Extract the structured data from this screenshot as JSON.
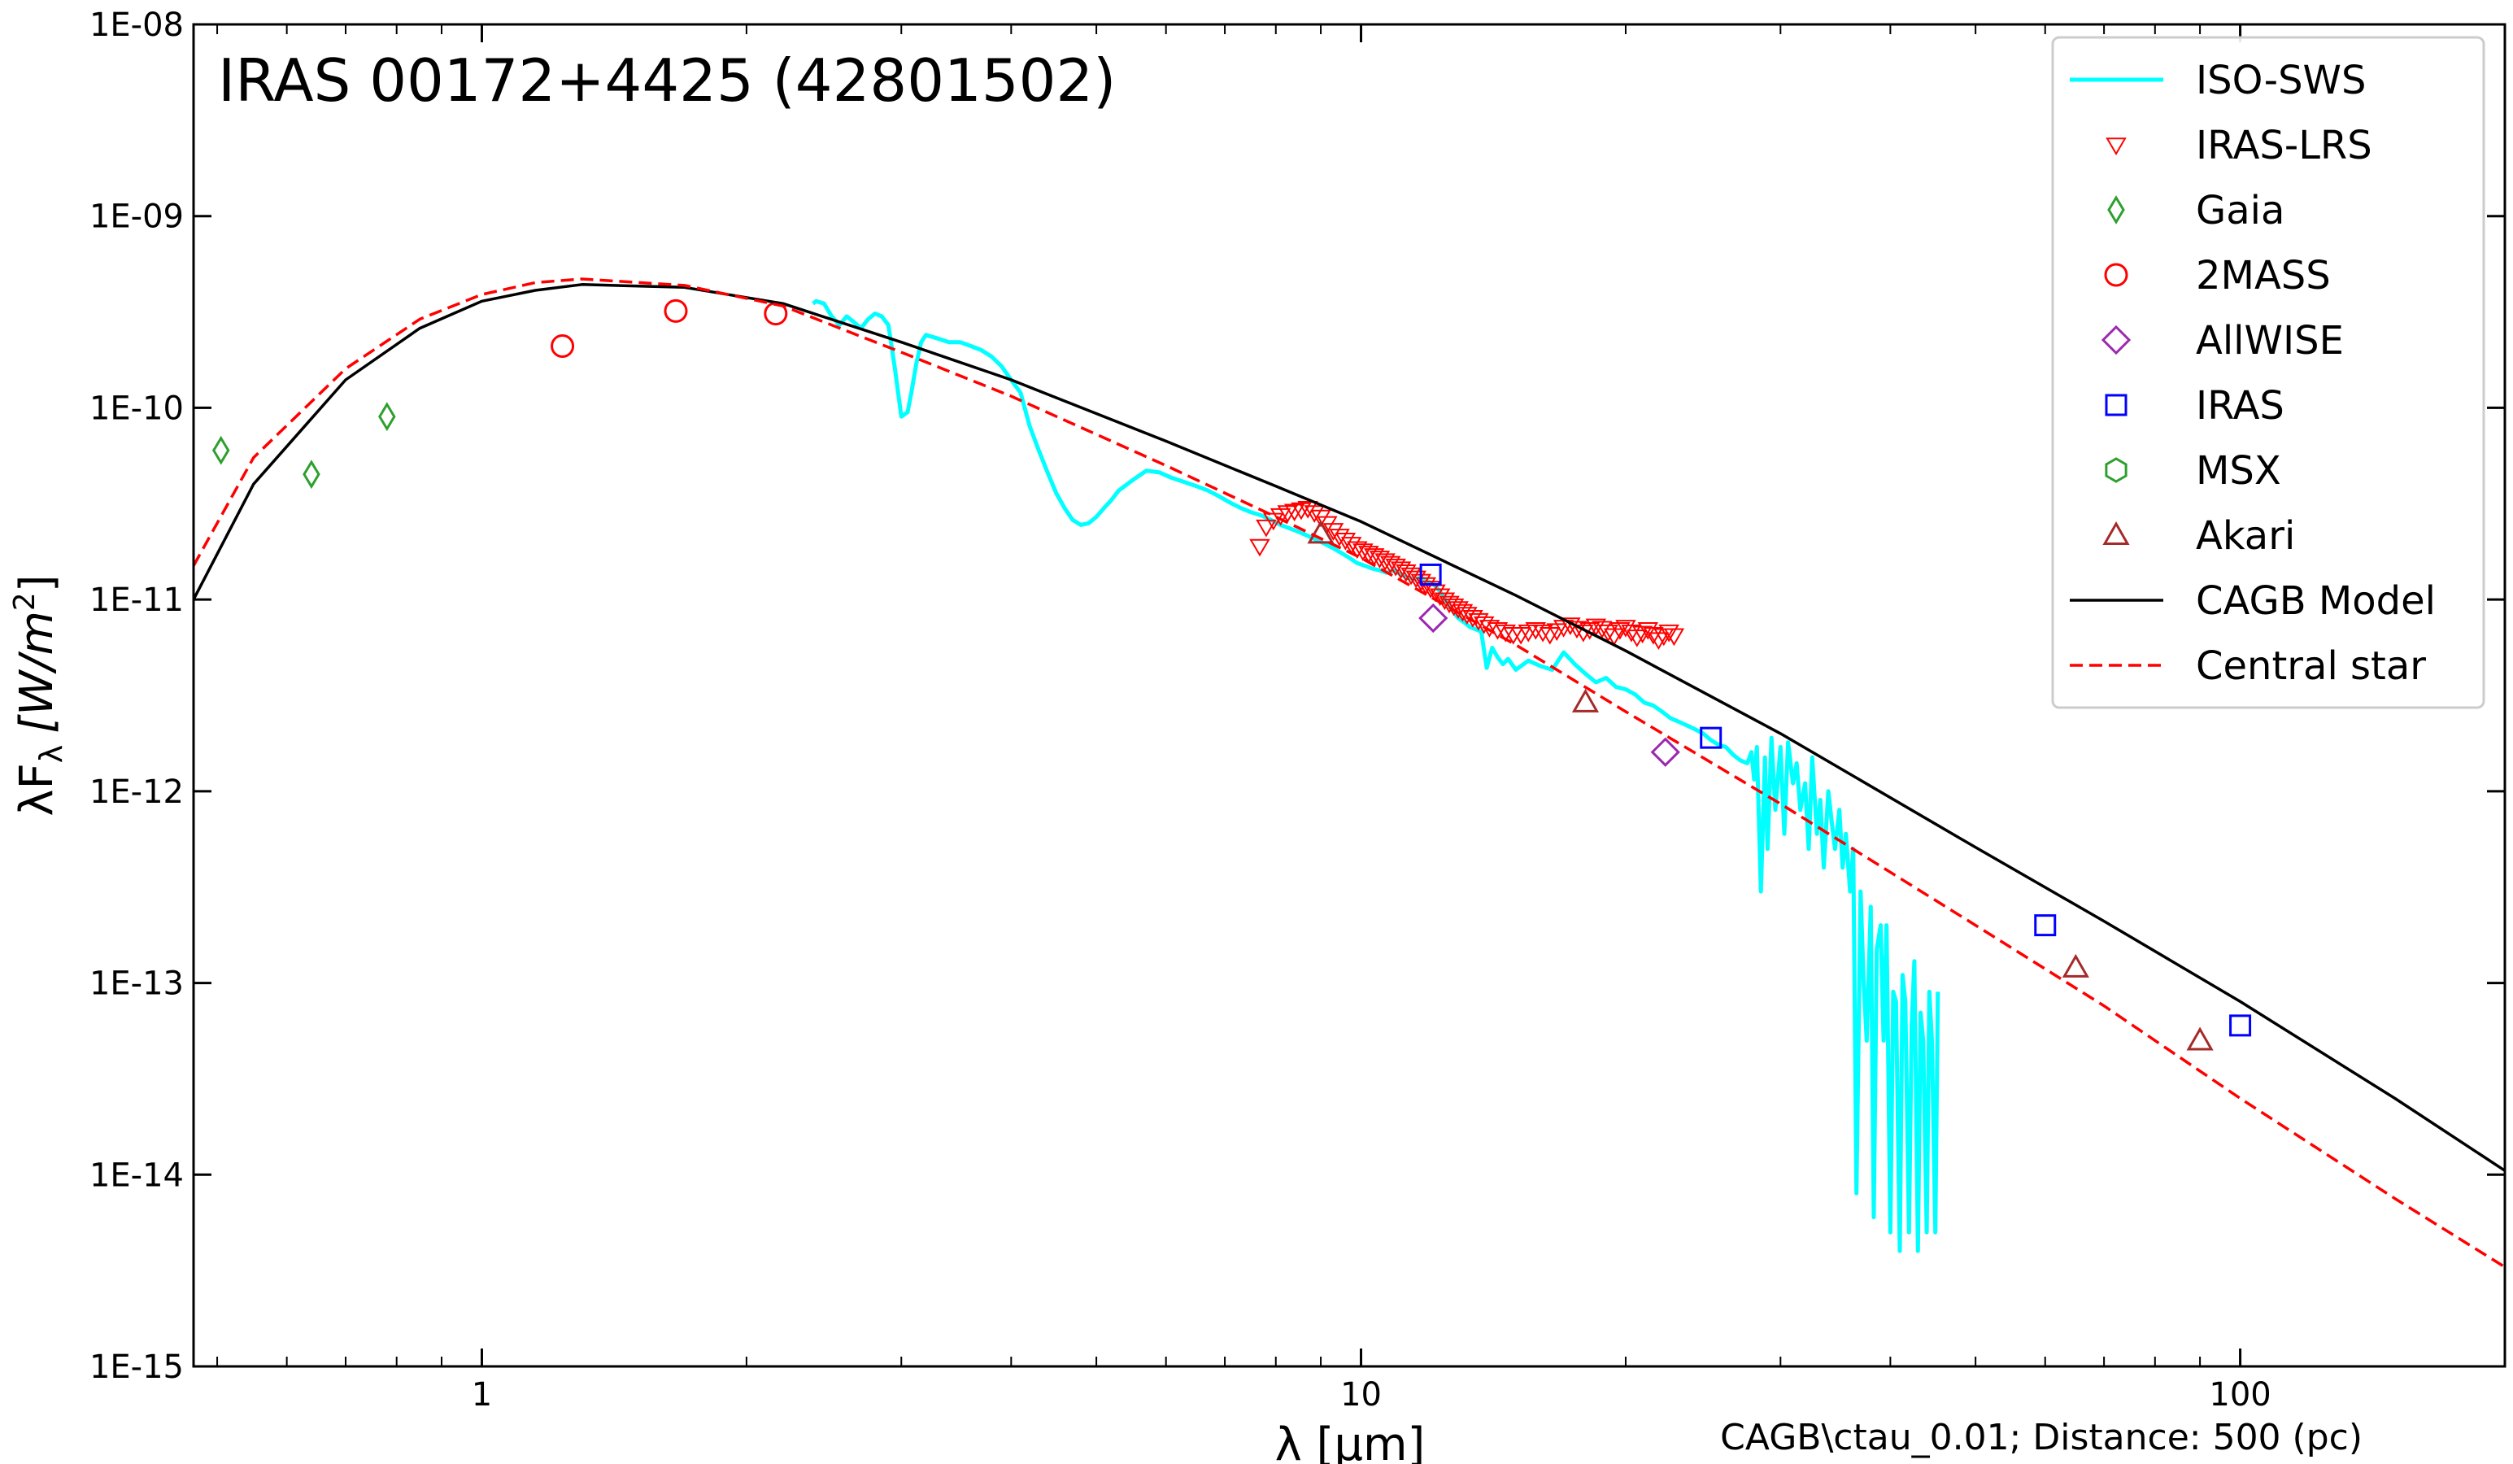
{
  "chart_data": {
    "type": "scatter",
    "title": "IRAS 00172+4425  (42801502)",
    "xlabel": "λ [μm]",
    "ylabel": "λF_λ [W/m²]",
    "ylabel_main": "λF",
    "ylabel_sub": "λ",
    "ylabel_unit": "[W/m",
    "ylabel_sup": "2",
    "ylabel_close": "]",
    "annotation": "CAGB\\ctau_0.01; Distance: 500 (pc)",
    "xscale": "log",
    "yscale": "log",
    "xlim": [
      0.47,
      200
    ],
    "ylim": [
      1e-15,
      1e-08
    ],
    "x_ticks": [
      {
        "value": 1,
        "label": "1"
      },
      {
        "value": 10,
        "label": "10"
      },
      {
        "value": 100,
        "label": "100"
      }
    ],
    "y_ticks": [
      {
        "value": 1e-15,
        "label": "1E-15"
      },
      {
        "value": 1e-14,
        "label": "1E-14"
      },
      {
        "value": 1e-13,
        "label": "1E-13"
      },
      {
        "value": 1e-12,
        "label": "1E-12"
      },
      {
        "value": 1e-11,
        "label": "1E-11"
      },
      {
        "value": 1e-10,
        "label": "1E-10"
      },
      {
        "value": 1e-09,
        "label": "1E-09"
      },
      {
        "value": 1e-08,
        "label": "1E-08"
      }
    ],
    "grid": false,
    "legend_position": "top-right",
    "series": [
      {
        "name": "ISO-SWS",
        "kind": "line",
        "color": "#00ffff",
        "stroke_width": 5,
        "x": [
          2.38,
          2.4,
          2.45,
          2.5,
          2.55,
          2.6,
          2.65,
          2.7,
          2.75,
          2.8,
          2.85,
          2.9,
          2.95,
          3.0,
          3.05,
          3.08,
          3.12,
          3.16,
          3.2,
          3.3,
          3.4,
          3.5,
          3.6,
          3.7,
          3.8,
          3.9,
          4.0,
          4.1,
          4.2,
          4.3,
          4.4,
          4.5,
          4.6,
          4.7,
          4.8,
          4.9,
          5.0,
          5.1,
          5.2,
          5.3,
          5.5,
          5.7,
          5.9,
          6.1,
          6.3,
          6.5,
          6.7,
          6.9,
          7.1,
          7.3,
          7.5,
          7.7,
          7.9,
          8.1,
          8.3,
          8.5,
          8.7,
          8.9,
          9.1,
          9.3,
          9.5,
          9.7,
          9.9,
          10.1,
          10.3,
          10.5,
          10.7,
          10.9,
          11.1,
          11.3,
          11.5,
          11.7,
          11.9,
          12.1,
          12.3,
          12.5,
          12.7,
          12.9,
          13.1,
          13.3,
          13.5,
          13.7,
          13.9,
          14.1,
          14.3,
          14.5,
          14.7,
          15.0,
          15.5,
          16.0,
          16.5,
          17.0,
          17.5,
          18.0,
          18.5,
          19.0,
          19.5,
          20.0,
          20.5,
          21.0,
          21.5,
          22.0,
          22.5,
          23.0,
          23.5,
          24.0,
          24.5,
          25.0,
          25.5,
          26.0,
          26.5,
          27.0,
          27.5,
          27.8,
          28.0,
          28.2,
          28.5,
          28.8,
          29.0,
          29.3,
          29.6,
          30.0,
          30.3,
          30.6,
          31.0,
          31.3,
          31.6,
          32.0,
          32.3,
          32.6,
          33.0,
          33.3,
          33.6,
          34.0,
          34.3,
          34.6,
          35.0,
          35.3,
          35.6,
          36.0,
          36.3,
          36.6,
          37.0,
          37.3,
          37.6,
          38.0,
          38.3,
          38.6,
          39.0,
          39.3,
          39.6,
          40.0,
          40.3,
          40.6,
          41.0,
          41.3,
          41.6,
          42.0,
          42.3,
          42.6,
          43.0,
          43.3,
          43.6,
          44.0,
          44.3,
          44.6,
          45.0,
          45.3
        ],
        "y": [
          3.5e-10,
          3.6e-10,
          3.5e-10,
          3e-10,
          2.7e-10,
          3e-10,
          2.8e-10,
          2.6e-10,
          2.9e-10,
          3.1e-10,
          3e-10,
          2.7e-10,
          1.6e-10,
          9e-11,
          9.5e-11,
          1.2e-10,
          1.7e-10,
          2.2e-10,
          2.4e-10,
          2.3e-10,
          2.2e-10,
          2.2e-10,
          2.1e-10,
          2e-10,
          1.85e-10,
          1.65e-10,
          1.4e-10,
          1.2e-10,
          8e-11,
          6e-11,
          4.6e-11,
          3.6e-11,
          3e-11,
          2.6e-11,
          2.45e-11,
          2.5e-11,
          2.7e-11,
          3e-11,
          3.3e-11,
          3.7e-11,
          4.2e-11,
          4.7e-11,
          4.6e-11,
          4.3e-11,
          4.1e-11,
          3.9e-11,
          3.7e-11,
          3.45e-11,
          3.2e-11,
          3e-11,
          2.85e-11,
          2.75e-11,
          2.6e-11,
          2.45e-11,
          2.35e-11,
          2.25e-11,
          2.15e-11,
          2.05e-11,
          1.95e-11,
          1.85e-11,
          1.75e-11,
          1.65e-11,
          1.55e-11,
          1.5e-11,
          1.45e-11,
          1.42e-11,
          1.38e-11,
          1.42e-11,
          1.35e-11,
          1.3e-11,
          1.28e-11,
          1.3e-11,
          1.25e-11,
          1.2e-11,
          1.1e-11,
          9.8e-12,
          8.8e-12,
          8e-12,
          7.6e-12,
          7.2e-12,
          7e-12,
          6.8e-12,
          4.4e-12,
          5.6e-12,
          5e-12,
          4.6e-12,
          4.9e-12,
          4.3e-12,
          4.8e-12,
          4.5e-12,
          4.3e-12,
          5.3e-12,
          4.6e-12,
          4.1e-12,
          3.7e-12,
          3.9e-12,
          3.5e-12,
          3.4e-12,
          3.2e-12,
          2.9e-12,
          2.8e-12,
          2.6e-12,
          2.4e-12,
          2.3e-12,
          2.2e-12,
          2.1e-12,
          2e-12,
          1.85e-12,
          1.75e-12,
          1.7e-12,
          1.55e-12,
          1.45e-12,
          1.4e-12,
          1.6e-12,
          1.15e-12,
          1.7e-12,
          3e-13,
          1.5e-12,
          5e-13,
          1.9e-12,
          8e-13,
          1.7e-12,
          6e-13,
          1.8e-12,
          1.1e-12,
          1.4e-12,
          8e-13,
          1.1e-12,
          5e-13,
          1.5e-12,
          6e-13,
          9e-13,
          4e-13,
          1e-12,
          7e-13,
          5e-13,
          8e-13,
          4e-13,
          6e-13,
          3e-13,
          5e-13,
          8e-15,
          3e-13,
          1e-13,
          5e-14,
          2.5e-13,
          6e-15,
          1.5e-13,
          2e-13,
          5e-14,
          2e-13,
          5e-15,
          9e-14,
          8e-14,
          4e-15,
          1.1e-13,
          8e-14,
          5e-15,
          6e-14,
          1.3e-13,
          4e-15,
          7e-14,
          5e-14,
          5e-15,
          9e-14,
          5e-14,
          5e-15,
          9e-14
        ]
      },
      {
        "name": "IRAS-LRS",
        "kind": "marker",
        "marker": "triangle-down",
        "color": "#ff0000",
        "size": 11,
        "x": [
          7.67,
          7.8,
          7.95,
          8.1,
          8.25,
          8.4,
          8.55,
          8.7,
          8.85,
          9.0,
          9.15,
          9.3,
          9.45,
          9.6,
          9.75,
          9.9,
          10.05,
          10.2,
          10.35,
          10.5,
          10.65,
          10.8,
          10.95,
          11.1,
          11.25,
          11.4,
          11.55,
          11.7,
          11.85,
          12.0,
          12.15,
          12.3,
          12.45,
          12.6,
          12.75,
          12.9,
          13.05,
          13.2,
          13.4,
          13.6,
          13.8,
          14.0,
          14.3,
          14.6,
          14.9,
          15.2,
          15.5,
          15.8,
          16.1,
          16.4,
          16.7,
          17.0,
          17.3,
          17.6,
          17.9,
          18.2,
          18.5,
          18.8,
          19.1,
          19.4,
          19.7,
          20.0,
          20.3,
          20.6,
          20.9,
          21.2,
          21.5,
          21.8,
          22.1,
          22.4,
          22.7
        ],
        "y": [
          1.9e-11,
          2.4e-11,
          2.6e-11,
          2.75e-11,
          2.85e-11,
          2.9e-11,
          2.95e-11,
          3e-11,
          2.85e-11,
          2.7e-11,
          2.5e-11,
          2.3e-11,
          2.15e-11,
          2.05e-11,
          1.95e-11,
          1.85e-11,
          1.8e-11,
          1.75e-11,
          1.7e-11,
          1.65e-11,
          1.6e-11,
          1.55e-11,
          1.5e-11,
          1.45e-11,
          1.4e-11,
          1.35e-11,
          1.3e-11,
          1.25e-11,
          1.2e-11,
          1.15e-11,
          1.1e-11,
          1.05e-11,
          1e-11,
          9.6e-12,
          9.3e-12,
          9e-12,
          8.7e-12,
          8.4e-12,
          8.1e-12,
          7.8e-12,
          7.5e-12,
          7.2e-12,
          7e-12,
          6.8e-12,
          6.6e-12,
          6.6e-12,
          6.8e-12,
          7e-12,
          6.8e-12,
          6.6e-12,
          6.9e-12,
          7.2e-12,
          7.4e-12,
          7.1e-12,
          6.8e-12,
          7e-12,
          7.3e-12,
          7.1e-12,
          6.8e-12,
          6.5e-12,
          7e-12,
          7.2e-12,
          6.8e-12,
          6.4e-12,
          6.7e-12,
          7e-12,
          6.6e-12,
          6.2e-12,
          6.5e-12,
          6.8e-12,
          6.5e-12
        ]
      },
      {
        "name": "Gaia",
        "kind": "marker",
        "marker": "thin-diamond",
        "color": "#2ca02c",
        "size": 15,
        "x": [
          0.505,
          0.64,
          0.78
        ],
        "y": [
          6e-11,
          4.5e-11,
          9e-11
        ]
      },
      {
        "name": "2MASS",
        "kind": "marker",
        "marker": "circle",
        "color": "#ff0000",
        "size": 13,
        "x": [
          1.235,
          1.662,
          2.159
        ],
        "y": [
          2.1e-10,
          3.2e-10,
          3.1e-10
        ]
      },
      {
        "name": "AllWISE",
        "kind": "marker",
        "marker": "diamond",
        "color": "#9c27b0",
        "size": 16,
        "x": [
          12.08,
          22.19
        ],
        "y": [
          8e-12,
          1.6e-12
        ]
      },
      {
        "name": "IRAS",
        "kind": "marker",
        "marker": "square",
        "color": "#0000ff",
        "size": 12,
        "x": [
          12.0,
          25.0,
          60.0,
          100.0
        ],
        "y": [
          1.35e-11,
          1.9e-12,
          2e-13,
          6e-14
        ]
      },
      {
        "name": "MSX",
        "kind": "marker",
        "marker": "hexagon",
        "color": "#2ca02c",
        "size": 14,
        "x": [],
        "y": []
      },
      {
        "name": "Akari",
        "kind": "marker",
        "marker": "triangle-up",
        "color": "#a52a2a",
        "size": 14,
        "x": [
          9.0,
          18.0,
          65.0,
          90.0
        ],
        "y": [
          2.2e-11,
          2.9e-12,
          1.2e-13,
          5e-14
        ]
      },
      {
        "name": "CAGB Model",
        "kind": "line",
        "color": "#000000",
        "stroke_width": 3.5,
        "x": [
          0.47,
          0.55,
          0.7,
          0.85,
          1.0,
          1.15,
          1.3,
          1.7,
          2.2,
          3.0,
          4.0,
          6.0,
          8.0,
          10.0,
          15.0,
          20.0,
          30.0,
          50.0,
          70.0,
          100.0,
          150.0,
          200.0
        ],
        "y": [
          1e-11,
          4e-11,
          1.4e-10,
          2.6e-10,
          3.6e-10,
          4.1e-10,
          4.4e-10,
          4.25e-10,
          3.5e-10,
          2.2e-10,
          1.4e-10,
          6.7e-11,
          3.9e-11,
          2.55e-11,
          1.05e-11,
          5.4e-12,
          2e-12,
          5.1e-13,
          2.1e-13,
          8e-14,
          2.5e-14,
          1.05e-14
        ]
      },
      {
        "name": "Central star",
        "kind": "line",
        "color": "#ff0000",
        "stroke_width": 3.5,
        "dash": "16,8",
        "x": [
          0.47,
          0.55,
          0.7,
          0.85,
          1.0,
          1.15,
          1.3,
          1.7,
          2.2,
          3.0,
          4.0,
          6.0,
          8.0,
          10.0,
          15.0,
          20.0,
          30.0,
          50.0,
          70.0,
          100.0,
          150.0,
          200.0
        ],
        "y": [
          1.5e-11,
          5.5e-11,
          1.6e-10,
          2.9e-10,
          3.9e-10,
          4.5e-10,
          4.7e-10,
          4.35e-10,
          3.4e-10,
          1.95e-10,
          1.15e-10,
          5e-11,
          2.7e-11,
          1.65e-11,
          5.8e-12,
          2.6e-12,
          8.6e-13,
          2e-13,
          7.6e-14,
          2.5e-14,
          7.5e-15,
          3.3e-15
        ]
      }
    ]
  }
}
